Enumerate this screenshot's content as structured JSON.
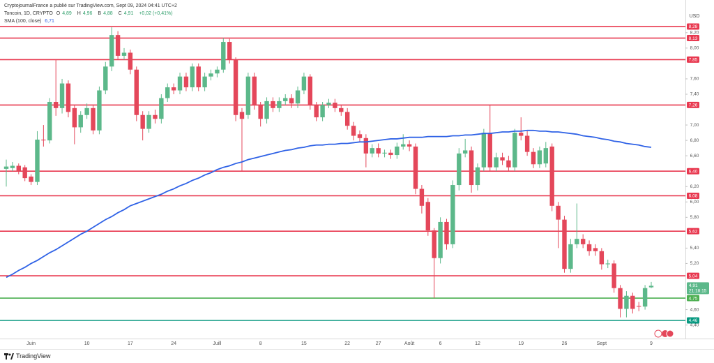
{
  "chart_data": {
    "type": "candlestick",
    "publisher": "CryptojournalFrance a publié sur TradingView.com, Sept 09, 2024 04:41 UTC+2",
    "ohlc_keys": [
      "O",
      "H",
      "B",
      "C"
    ],
    "ohlc_values": [
      "4,89",
      "4,96",
      "4,88",
      "4,91"
    ],
    "change": "+0,02 (+0,41%)",
    "currency": "USD",
    "footer": "TradingView",
    "countdown": "21:18:15",
    "last_price": {
      "value": 4.91,
      "label": "4,91"
    },
    "ylim": [
      4.224,
      8.625
    ],
    "yticks": [
      {
        "value": 8.2,
        "label": "8,20"
      },
      {
        "value": 8.0,
        "label": "8,00"
      },
      {
        "value": 7.6,
        "label": "7,60"
      },
      {
        "value": 7.4,
        "label": "7,40"
      },
      {
        "value": 7.0,
        "label": "7,00"
      },
      {
        "value": 6.8,
        "label": "6,80"
      },
      {
        "value": 6.6,
        "label": "6,60"
      },
      {
        "value": 6.2,
        "label": "6,20"
      },
      {
        "value": 6.0,
        "label": "6,00"
      },
      {
        "value": 5.8,
        "label": "5,80"
      },
      {
        "value": 5.4,
        "label": "5,40"
      },
      {
        "value": 5.2,
        "label": "5,20"
      },
      {
        "value": 4.6,
        "label": "4,60"
      },
      {
        "value": 4.4,
        "label": "4,40"
      }
    ],
    "levels": [
      {
        "value": 8.28,
        "label": "8,28",
        "color": "#e8384f"
      },
      {
        "value": 8.13,
        "label": "8,13",
        "color": "#e8384f"
      },
      {
        "value": 7.85,
        "label": "7,85",
        "color": "#e8384f"
      },
      {
        "value": 7.26,
        "label": "7,26",
        "color": "#e8384f"
      },
      {
        "value": 6.4,
        "label": "6,40",
        "color": "#e8384f"
      },
      {
        "value": 6.08,
        "label": "6,08",
        "color": "#e8384f"
      },
      {
        "value": 5.62,
        "label": "5,62",
        "color": "#e8384f"
      },
      {
        "value": 5.04,
        "label": "5,04",
        "color": "#e8384f"
      },
      {
        "value": 4.75,
        "label": "4,75",
        "color": "#4caf50"
      },
      {
        "value": 4.46,
        "label": "4,46",
        "color": "#089981"
      }
    ],
    "categories": [
      null,
      null,
      null,
      null,
      "Juin",
      null,
      null,
      null,
      null,
      null,
      null,
      null,
      null,
      "10",
      null,
      null,
      null,
      null,
      null,
      null,
      "17",
      null,
      null,
      null,
      null,
      null,
      null,
      "24",
      null,
      null,
      null,
      null,
      null,
      null,
      "Juill",
      null,
      null,
      null,
      null,
      null,
      null,
      "8",
      null,
      null,
      null,
      null,
      null,
      null,
      "15",
      null,
      null,
      null,
      null,
      null,
      null,
      "22",
      null,
      null,
      null,
      null,
      "27",
      null,
      null,
      null,
      null,
      "Août",
      null,
      null,
      null,
      null,
      "6",
      null,
      null,
      null,
      null,
      null,
      "12",
      null,
      null,
      null,
      null,
      null,
      null,
      "19",
      null,
      null,
      null,
      null,
      null,
      null,
      "26",
      null,
      null,
      null,
      null,
      null,
      "Sept",
      null,
      null,
      null,
      null,
      null,
      null,
      null,
      "9"
    ],
    "series": [
      {
        "name": "Toncoin, 1D, CRYPTO",
        "up_color": "#5cb88a",
        "down_color": "#e4475a",
        "open": [
          6.43,
          6.44,
          6.47,
          6.45,
          6.33,
          6.26,
          6.81,
          6.8,
          7.3,
          7.22,
          7.54,
          7.22,
          6.97,
          7.13,
          7.22,
          6.93,
          7.45,
          7.76,
          8.17,
          7.9,
          7.94,
          7.72,
          7.13,
          6.95,
          7.13,
          7.08,
          7.35,
          7.49,
          7.45,
          7.63,
          7.49,
          7.76,
          7.49,
          7.63,
          7.67,
          7.72,
          8.08,
          7.85,
          7.17,
          7.13,
          7.63,
          7.26,
          7.08,
          7.31,
          7.22,
          7.31,
          7.35,
          7.28,
          7.45,
          7.63,
          7.26,
          7.1,
          7.26,
          7.29,
          7.22,
          7.17,
          6.99,
          6.88,
          6.83,
          6.63,
          6.7,
          6.63,
          6.64,
          6.61,
          6.72,
          6.75,
          6.72,
          6.17,
          6.0,
          5.63,
          5.27,
          5.74,
          5.45,
          6.22,
          6.63,
          6.67,
          6.22,
          6.45,
          6.9,
          6.45,
          6.58,
          6.54,
          6.45,
          6.9,
          6.86,
          6.65,
          6.49,
          6.5,
          6.72,
          5.95,
          5.77,
          5.13,
          5.45,
          5.52,
          5.45,
          5.4,
          5.36,
          5.19,
          5.2,
          4.88,
          4.61,
          4.78,
          4.65,
          4.64,
          4.89
        ],
        "high": [
          6.55,
          6.52,
          6.5,
          6.48,
          6.36,
          6.92,
          7.0,
          7.35,
          7.85,
          7.6,
          7.58,
          7.26,
          7.18,
          7.28,
          7.26,
          7.5,
          7.82,
          8.27,
          8.22,
          8.0,
          7.98,
          7.76,
          7.18,
          7.18,
          7.2,
          7.4,
          7.54,
          7.54,
          7.68,
          7.68,
          7.8,
          7.8,
          7.68,
          7.72,
          7.76,
          8.13,
          8.12,
          7.88,
          7.22,
          7.68,
          7.68,
          7.3,
          7.36,
          7.36,
          7.36,
          7.4,
          7.4,
          7.5,
          7.68,
          7.66,
          7.3,
          7.3,
          7.34,
          7.34,
          7.26,
          7.22,
          7.04,
          6.93,
          6.88,
          6.75,
          6.76,
          6.68,
          6.68,
          6.77,
          6.88,
          6.8,
          6.76,
          6.22,
          6.05,
          5.66,
          5.8,
          5.78,
          6.28,
          6.7,
          6.82,
          6.72,
          6.5,
          6.95,
          7.26,
          6.64,
          6.64,
          6.6,
          6.95,
          7.1,
          6.92,
          6.7,
          6.72,
          6.78,
          6.76,
          6.0,
          5.82,
          5.52,
          5.98,
          5.58,
          5.5,
          5.45,
          5.4,
          5.25,
          5.24,
          4.92,
          4.84,
          4.82,
          4.7,
          4.92,
          4.96
        ],
        "low": [
          6.2,
          6.4,
          6.36,
          6.27,
          6.22,
          6.22,
          6.72,
          6.76,
          7.12,
          7.15,
          7.1,
          6.75,
          6.9,
          7.08,
          6.88,
          6.88,
          7.4,
          7.7,
          7.85,
          7.85,
          7.66,
          7.05,
          6.8,
          6.9,
          7.02,
          7.02,
          7.3,
          7.4,
          7.4,
          7.44,
          7.44,
          7.44,
          7.44,
          7.58,
          7.62,
          7.68,
          7.8,
          7.05,
          6.4,
          7.08,
          7.2,
          6.98,
          7.02,
          7.17,
          7.17,
          7.26,
          7.22,
          7.22,
          7.4,
          7.2,
          7.05,
          7.05,
          7.22,
          7.17,
          7.12,
          6.94,
          6.8,
          6.78,
          6.45,
          6.58,
          6.58,
          6.58,
          6.56,
          6.56,
          6.68,
          6.66,
          6.1,
          5.85,
          5.56,
          4.75,
          5.2,
          5.38,
          5.4,
          6.15,
          6.58,
          6.12,
          6.15,
          6.4,
          6.4,
          6.4,
          6.48,
          6.4,
          6.4,
          6.8,
          6.6,
          6.44,
          6.44,
          6.45,
          5.88,
          5.4,
          5.08,
          5.08,
          5.4,
          5.4,
          5.3,
          5.3,
          5.12,
          5.14,
          4.82,
          4.5,
          4.5,
          4.55,
          4.58,
          4.6,
          4.88
        ],
        "close": [
          6.46,
          6.47,
          6.4,
          6.31,
          6.26,
          6.81,
          6.8,
          7.3,
          7.22,
          7.54,
          7.17,
          6.97,
          7.13,
          7.22,
          6.93,
          7.45,
          7.76,
          8.17,
          7.9,
          7.94,
          7.72,
          7.13,
          6.95,
          7.13,
          7.08,
          7.35,
          7.49,
          7.45,
          7.63,
          7.49,
          7.76,
          7.49,
          7.63,
          7.67,
          7.72,
          8.08,
          7.85,
          7.13,
          7.08,
          7.63,
          7.26,
          7.08,
          7.31,
          7.22,
          7.31,
          7.35,
          7.28,
          7.45,
          7.63,
          7.26,
          7.1,
          7.26,
          7.29,
          7.22,
          7.17,
          6.99,
          6.86,
          6.83,
          6.63,
          6.7,
          6.63,
          6.64,
          6.61,
          6.72,
          6.75,
          6.72,
          6.17,
          5.95,
          5.63,
          5.27,
          5.74,
          5.45,
          6.22,
          6.63,
          6.67,
          6.22,
          6.45,
          6.9,
          6.45,
          6.58,
          6.54,
          6.45,
          6.9,
          6.86,
          6.65,
          6.49,
          6.67,
          6.7,
          5.95,
          5.77,
          5.13,
          5.45,
          5.52,
          5.45,
          5.36,
          5.36,
          5.19,
          5.2,
          4.88,
          4.61,
          4.78,
          4.61,
          4.64,
          4.88,
          4.91
        ]
      },
      {
        "name": "SMA (100, close)",
        "type": "line",
        "color": "#2f62e6",
        "last_label": "6,71",
        "values": [
          5.02,
          5.06,
          5.11,
          5.15,
          5.2,
          5.24,
          5.29,
          5.34,
          5.38,
          5.43,
          5.48,
          5.53,
          5.58,
          5.62,
          5.67,
          5.72,
          5.77,
          5.81,
          5.86,
          5.9,
          5.95,
          5.98,
          6.01,
          6.04,
          6.07,
          6.1,
          6.14,
          6.17,
          6.21,
          6.24,
          6.28,
          6.31,
          6.35,
          6.38,
          6.42,
          6.45,
          6.47,
          6.5,
          6.52,
          6.55,
          6.57,
          6.59,
          6.61,
          6.63,
          6.65,
          6.67,
          6.68,
          6.7,
          6.71,
          6.73,
          6.74,
          6.74,
          6.75,
          6.75,
          6.76,
          6.76,
          6.77,
          6.78,
          6.78,
          6.79,
          6.8,
          6.81,
          6.82,
          6.82,
          6.83,
          6.84,
          6.84,
          6.84,
          6.85,
          6.85,
          6.85,
          6.85,
          6.86,
          6.86,
          6.87,
          6.87,
          6.88,
          6.89,
          6.89,
          6.9,
          6.91,
          6.91,
          6.92,
          6.92,
          6.93,
          6.93,
          6.92,
          6.92,
          6.91,
          6.91,
          6.9,
          6.89,
          6.88,
          6.86,
          6.85,
          6.84,
          6.82,
          6.81,
          6.79,
          6.78,
          6.76,
          6.75,
          6.74,
          6.72,
          6.71
        ]
      }
    ]
  }
}
